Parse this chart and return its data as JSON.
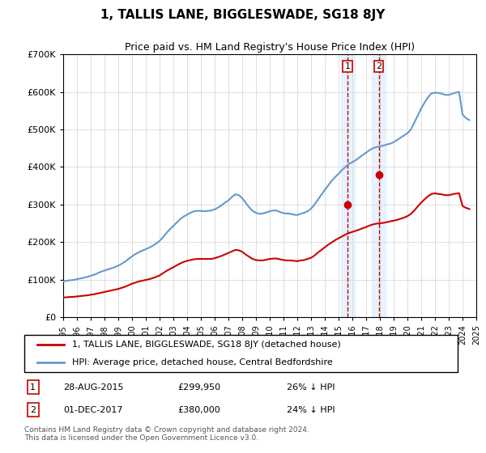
{
  "title": "1, TALLIS LANE, BIGGLESWADE, SG18 8JY",
  "subtitle": "Price paid vs. HM Land Registry's House Price Index (HPI)",
  "hpi_label": "HPI: Average price, detached house, Central Bedfordshire",
  "property_label": "1, TALLIS LANE, BIGGLESWADE, SG18 8JY (detached house)",
  "hpi_color": "#6699cc",
  "price_color": "#cc0000",
  "transaction_color_fill": "#ddeeff",
  "transaction_vline_color": "#cc0000",
  "ylim": [
    0,
    700000
  ],
  "yticks": [
    0,
    100000,
    200000,
    300000,
    400000,
    500000,
    600000,
    700000
  ],
  "ytick_labels": [
    "£0",
    "£100K",
    "£200K",
    "£300K",
    "£400K",
    "£500K",
    "£600K",
    "£700K"
  ],
  "footnote": "Contains HM Land Registry data © Crown copyright and database right 2024.\nThis data is licensed under the Open Government Licence v3.0.",
  "transactions": [
    {
      "label": "1",
      "date": "28-AUG-2015",
      "price": 299950,
      "pct": "26% ↓ HPI",
      "x": 2015.66
    },
    {
      "label": "2",
      "date": "01-DEC-2017",
      "price": 380000,
      "pct": "24% ↓ HPI",
      "x": 2017.92
    }
  ],
  "hpi_data_x": [
    1995,
    1995.25,
    1995.5,
    1995.75,
    1996,
    1996.25,
    1996.5,
    1996.75,
    1997,
    1997.25,
    1997.5,
    1997.75,
    1998,
    1998.25,
    1998.5,
    1998.75,
    1999,
    1999.25,
    1999.5,
    1999.75,
    2000,
    2000.25,
    2000.5,
    2000.75,
    2001,
    2001.25,
    2001.5,
    2001.75,
    2002,
    2002.25,
    2002.5,
    2002.75,
    2003,
    2003.25,
    2003.5,
    2003.75,
    2004,
    2004.25,
    2004.5,
    2004.75,
    2005,
    2005.25,
    2005.5,
    2005.75,
    2006,
    2006.25,
    2006.5,
    2006.75,
    2007,
    2007.25,
    2007.5,
    2007.75,
    2008,
    2008.25,
    2008.5,
    2008.75,
    2009,
    2009.25,
    2009.5,
    2009.75,
    2010,
    2010.25,
    2010.5,
    2010.75,
    2011,
    2011.25,
    2011.5,
    2011.75,
    2012,
    2012.25,
    2012.5,
    2012.75,
    2013,
    2013.25,
    2013.5,
    2013.75,
    2014,
    2014.25,
    2014.5,
    2014.75,
    2015,
    2015.25,
    2015.5,
    2015.75,
    2016,
    2016.25,
    2016.5,
    2016.75,
    2017,
    2017.25,
    2017.5,
    2017.75,
    2018,
    2018.25,
    2018.5,
    2018.75,
    2019,
    2019.25,
    2019.5,
    2019.75,
    2020,
    2020.25,
    2020.5,
    2020.75,
    2021,
    2021.25,
    2021.5,
    2021.75,
    2022,
    2022.25,
    2022.5,
    2022.75,
    2023,
    2023.25,
    2023.5,
    2023.75,
    2024,
    2024.25,
    2024.5
  ],
  "hpi_data_y": [
    95000,
    97000,
    98000,
    99000,
    101000,
    103000,
    105000,
    107000,
    110000,
    113000,
    117000,
    121000,
    124000,
    127000,
    130000,
    133000,
    137000,
    142000,
    148000,
    155000,
    162000,
    168000,
    173000,
    177000,
    181000,
    185000,
    190000,
    196000,
    203000,
    213000,
    224000,
    234000,
    243000,
    252000,
    261000,
    268000,
    273000,
    278000,
    282000,
    283000,
    283000,
    282000,
    283000,
    284000,
    287000,
    292000,
    298000,
    305000,
    311000,
    320000,
    327000,
    325000,
    317000,
    305000,
    293000,
    283000,
    278000,
    275000,
    276000,
    279000,
    282000,
    284000,
    284000,
    280000,
    277000,
    276000,
    275000,
    273000,
    272000,
    275000,
    278000,
    282000,
    289000,
    300000,
    313000,
    326000,
    339000,
    351000,
    363000,
    373000,
    382000,
    392000,
    400000,
    408000,
    413000,
    418000,
    425000,
    432000,
    438000,
    445000,
    450000,
    453000,
    455000,
    457000,
    460000,
    462000,
    466000,
    472000,
    478000,
    484000,
    490000,
    500000,
    518000,
    537000,
    556000,
    572000,
    586000,
    596000,
    598000,
    597000,
    595000,
    592000,
    592000,
    595000,
    598000,
    600000,
    540000,
    530000,
    525000
  ],
  "price_data_x": [
    1995,
    1995.25,
    1995.5,
    1995.75,
    1996,
    1996.25,
    1996.5,
    1996.75,
    1997,
    1997.25,
    1997.5,
    1997.75,
    1998,
    1998.25,
    1998.5,
    1998.75,
    1999,
    1999.25,
    1999.5,
    1999.75,
    2000,
    2000.25,
    2000.5,
    2000.75,
    2001,
    2001.25,
    2001.5,
    2001.75,
    2002,
    2002.25,
    2002.5,
    2002.75,
    2003,
    2003.25,
    2003.5,
    2003.75,
    2004,
    2004.25,
    2004.5,
    2004.75,
    2005,
    2005.25,
    2005.5,
    2005.75,
    2006,
    2006.25,
    2006.5,
    2006.75,
    2007,
    2007.25,
    2007.5,
    2007.75,
    2008,
    2008.25,
    2008.5,
    2008.75,
    2009,
    2009.25,
    2009.5,
    2009.75,
    2010,
    2010.25,
    2010.5,
    2010.75,
    2011,
    2011.25,
    2011.5,
    2011.75,
    2012,
    2012.25,
    2012.5,
    2012.75,
    2013,
    2013.25,
    2013.5,
    2013.75,
    2014,
    2014.25,
    2014.5,
    2014.75,
    2015,
    2015.25,
    2015.5,
    2015.75,
    2016,
    2016.25,
    2016.5,
    2016.75,
    2017,
    2017.25,
    2017.5,
    2017.75,
    2018,
    2018.25,
    2018.5,
    2018.75,
    2019,
    2019.25,
    2019.5,
    2019.75,
    2020,
    2020.25,
    2020.5,
    2020.75,
    2021,
    2021.25,
    2021.5,
    2021.75,
    2022,
    2022.25,
    2022.5,
    2022.75,
    2023,
    2023.25,
    2023.5,
    2023.75,
    2024,
    2024.25,
    2024.5
  ],
  "price_data_y": [
    52000,
    53000,
    53500,
    54000,
    55000,
    56000,
    57000,
    58000,
    59500,
    61000,
    63000,
    65000,
    67000,
    69000,
    71000,
    73000,
    75000,
    78000,
    81000,
    85000,
    89000,
    92000,
    95000,
    97000,
    99000,
    101000,
    104000,
    107000,
    111000,
    117000,
    123000,
    128000,
    133000,
    138000,
    143000,
    147000,
    150000,
    152000,
    154000,
    155000,
    155000,
    155000,
    155000,
    155000,
    157000,
    160000,
    163000,
    167000,
    171000,
    175000,
    179000,
    178000,
    174000,
    167000,
    161000,
    155000,
    152000,
    151000,
    151000,
    153000,
    155000,
    156000,
    156000,
    154000,
    152000,
    151000,
    151000,
    150000,
    149000,
    151000,
    152000,
    155000,
    158000,
    164000,
    172000,
    179000,
    186000,
    193000,
    199000,
    205000,
    210000,
    215000,
    220000,
    224000,
    227000,
    230000,
    233000,
    237000,
    240000,
    244000,
    247000,
    249000,
    250000,
    251000,
    253000,
    255000,
    257000,
    259000,
    262000,
    265000,
    269000,
    275000,
    284000,
    295000,
    305000,
    314000,
    322000,
    328000,
    330000,
    328000,
    327000,
    325000,
    325000,
    327000,
    329000,
    330000,
    296000,
    291000,
    288000
  ]
}
